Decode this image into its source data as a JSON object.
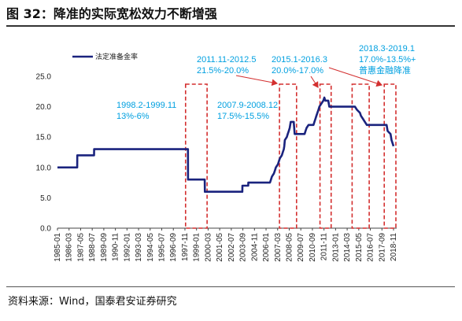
{
  "figure": {
    "title": "图 32：降准的实际宽松效力不断增强",
    "source": "资料来源：Wind，国泰君安证券研究"
  },
  "chart_data": {
    "type": "line",
    "legend": [
      "法定准备金率"
    ],
    "legend_position": "top-left",
    "ylim": [
      0,
      25
    ],
    "yticks": [
      "25.0",
      "20.0",
      "15.0",
      "10.0",
      "5.0",
      "0.0"
    ],
    "ytick_values": [
      25,
      20,
      15,
      10,
      5,
      0
    ],
    "xticks": [
      "1985-01",
      "1986-03",
      "1987-05",
      "1988-07",
      "1989-09",
      "1990-11",
      "1992-01",
      "1993-03",
      "1994-05",
      "1995-07",
      "1996-09",
      "1997-11",
      "1999-01",
      "2000-03",
      "2001-05",
      "2002-07",
      "2003-09",
      "2004-11",
      "2006-01",
      "2007-03",
      "2008-05",
      "2009-07",
      "2010-09",
      "2011-11",
      "2013-01",
      "2014-03",
      "2015-05",
      "2016-07",
      "2017-09",
      "2018-11"
    ],
    "series": [
      {
        "name": "法定准备金率",
        "color": "#1a237e",
        "x": [
          1985.0,
          1987.0,
          1987.01,
          1988.7,
          1988.71,
          1998.2,
          1998.21,
          1999.9,
          1999.91,
          2003.7,
          2003.71,
          2004.3,
          2004.31,
          2006.5,
          2006.6,
          2006.7,
          2006.9,
          2007.0,
          2007.1,
          2007.3,
          2007.4,
          2007.5,
          2007.7,
          2007.8,
          2007.9,
          2007.95,
          2008.0,
          2008.2,
          2008.3,
          2008.4,
          2008.5,
          2008.6,
          2008.9,
          2008.95,
          2009.0,
          2010.0,
          2010.1,
          2010.2,
          2010.4,
          2010.9,
          2011.0,
          2011.1,
          2011.2,
          2011.3,
          2011.4,
          2011.5,
          2011.9,
          2012.0,
          2012.1,
          2012.4,
          2012.5,
          2015.1,
          2015.3,
          2015.6,
          2015.7,
          2015.9,
          2016.1,
          2016.3,
          2018.3,
          2018.4,
          2018.7,
          2018.8,
          2019.0
        ],
        "y": [
          10,
          10,
          12,
          12,
          13,
          13,
          8,
          8,
          6,
          6,
          7,
          7,
          7.5,
          7.5,
          8,
          8.5,
          9,
          9.5,
          10,
          10.5,
          11,
          11.5,
          12,
          12.5,
          13,
          13.5,
          14.5,
          15,
          15.5,
          16,
          16.5,
          17.5,
          17.5,
          16.5,
          15.5,
          15.5,
          16,
          16.5,
          17,
          17,
          17.5,
          18,
          18.5,
          19,
          19.5,
          20,
          21,
          21.5,
          21,
          21,
          20,
          20,
          19.5,
          19,
          18.5,
          18,
          17.5,
          17,
          17,
          16,
          15.5,
          14.5,
          13.5
        ]
      }
    ],
    "annotations": [
      {
        "lines": [
          "1998.2-1999.11",
          "13%-6%"
        ],
        "range": [
          1998.2,
          1999.9
        ]
      },
      {
        "lines": [
          "2007.9-2008.12",
          "17.5%-15.5%"
        ],
        "range": [
          2007.7,
          2008.95
        ]
      },
      {
        "lines": [
          "2011.11-2012.5",
          "21.5%-20.0%"
        ],
        "range": [
          2011.8,
          2012.45
        ]
      },
      {
        "lines": [
          "2015.1-2016.3",
          "20.0%-17.0%"
        ],
        "range": [
          2015.05,
          2016.3
        ]
      },
      {
        "lines": [
          "2018.3-2019.1",
          "17.0%-13.5%+",
          "普惠金融降准"
        ],
        "range": [
          2018.3,
          2019.0
        ]
      }
    ]
  }
}
